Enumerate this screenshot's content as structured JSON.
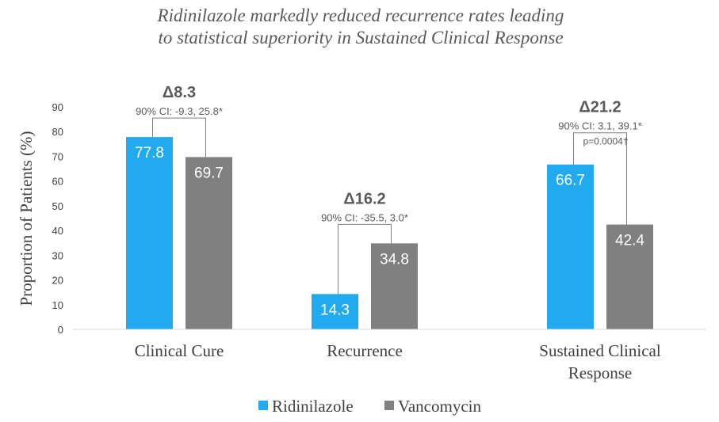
{
  "chart_data": {
    "type": "bar",
    "title_lines": [
      "Ridinilazole markedly reduced recurrence rates leading",
      "to statistical superiority in Sustained Clinical Response"
    ],
    "ylabel": "Proportion of Patients (%)",
    "ylim": [
      0,
      90
    ],
    "yticks": [
      "0",
      "10",
      "20",
      "30",
      "40",
      "50",
      "60",
      "70",
      "80",
      "90"
    ],
    "grid": false,
    "legend_position": "bottom",
    "categories": [
      {
        "lines": [
          "Clinical Cure"
        ]
      },
      {
        "lines": [
          "Recurrence"
        ]
      },
      {
        "lines": [
          "Sustained Clinical",
          "Response"
        ]
      }
    ],
    "series": [
      {
        "name": "Ridinilazole",
        "color": "#22aaee",
        "values": [
          77.8,
          14.3,
          66.7
        ],
        "labels": [
          "77.8",
          "14.3",
          "66.7"
        ]
      },
      {
        "name": "Vancomycin",
        "color": "#808080",
        "values": [
          69.7,
          34.8,
          42.4
        ],
        "labels": [
          "69.7",
          "34.8",
          "42.4"
        ]
      }
    ],
    "annotations": [
      {
        "delta": "Δ8.3",
        "ci": "90% CI: -9.3, 25.8*",
        "p": ""
      },
      {
        "delta": "Δ16.2",
        "ci": "90% CI: -35.5, 3.0*",
        "p": ""
      },
      {
        "delta": "Δ21.2",
        "ci": "90% CI: 3.1, 39.1*",
        "p": "p=0.0004†"
      }
    ]
  }
}
